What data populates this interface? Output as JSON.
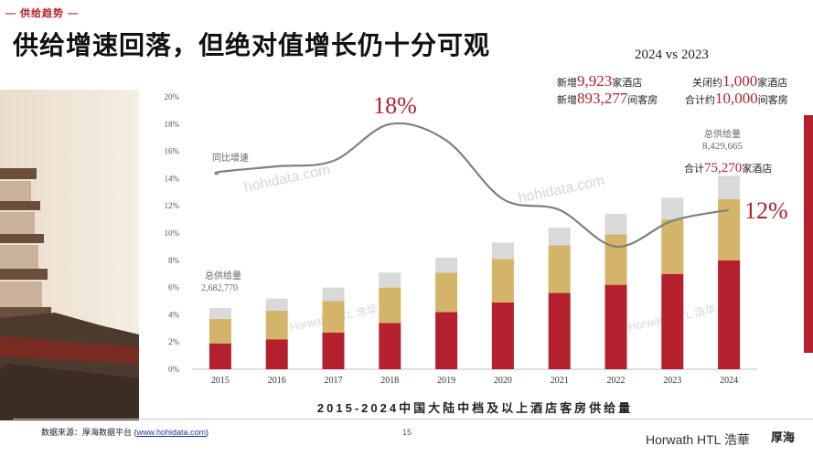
{
  "header": {
    "section_tag": "— 供给趋势 —",
    "title": "供给增速回落，但绝对值增长仍十分可观"
  },
  "comparison": {
    "label": "2024 vs 2023",
    "new_hotels_prefix": "新增",
    "new_hotels_value": "9,923",
    "new_hotels_suffix": "家酒店",
    "new_rooms_prefix": "新增",
    "new_rooms_value": "893,277",
    "new_rooms_suffix": "间客房",
    "closed_hotels_prefix": "关闭约",
    "closed_hotels_value": "1,000",
    "closed_hotels_suffix": "家酒店",
    "closed_rooms_prefix": "合计约",
    "closed_rooms_value": "10,000",
    "closed_rooms_suffix": "间客房"
  },
  "annotations": {
    "start_total_label": "总供给量",
    "start_total_value": "2,682,770",
    "end_total_label": "总供给量",
    "end_total_value": "8,429,665",
    "end_hotels_prefix": "合计",
    "end_hotels_value": "75,270",
    "end_hotels_suffix": "家酒店",
    "yoy_label": "同比增速",
    "peak_label": "18%",
    "end_label": "12%"
  },
  "watermarks": [
    "hohidata.com",
    "hohidata.com",
    "Horwath HTL 浩华",
    "Horwath HTL 浩华"
  ],
  "footer": {
    "source_prefix": "数据来源：厚海数据平台 (",
    "source_link": "www.hohidata.com",
    "source_suffix": ")",
    "page_number": "15",
    "logo_horwath": "Horwath HTL 浩華",
    "logo_hh": "厚海"
  },
  "colors": {
    "red": "#b5202e",
    "gold": "#d4b468",
    "grey": "#d9d9d9",
    "line": "#7f7f7f"
  },
  "chart_data": {
    "type": "bar",
    "title": "2015-2024中国大陆中档及以上酒店客房供给量",
    "categories": [
      "2015",
      "2016",
      "2017",
      "2018",
      "2019",
      "2020",
      "2021",
      "2022",
      "2023",
      "2024"
    ],
    "series": [
      {
        "values": [
          1.9,
          2.2,
          2.7,
          3.4,
          4.2,
          4.9,
          5.6,
          6.2,
          7.0,
          8.0
        ]
      },
      {
        "values": [
          1.8,
          2.1,
          2.3,
          2.6,
          2.9,
          3.2,
          3.5,
          3.7,
          4.0,
          4.5
        ]
      },
      {
        "values": [
          0.8,
          0.9,
          1.0,
          1.1,
          1.1,
          1.2,
          1.3,
          1.5,
          1.6,
          1.7
        ]
      }
    ],
    "line_series": {
      "name": "同比增速",
      "x": [
        2015,
        2016,
        2017,
        2018,
        2019,
        2020,
        2021,
        2022,
        2023,
        2024
      ],
      "values": [
        14.5,
        14.9,
        15.3,
        18.0,
        16.8,
        12.5,
        11.7,
        9.0,
        10.9,
        11.7
      ]
    },
    "y_ticks": [
      "0%",
      "2%",
      "4%",
      "6%",
      "8%",
      "10%",
      "12%",
      "14%",
      "16%",
      "18%",
      "20%"
    ],
    "ylim": [
      0,
      20
    ],
    "grid": false,
    "legend": "none"
  }
}
